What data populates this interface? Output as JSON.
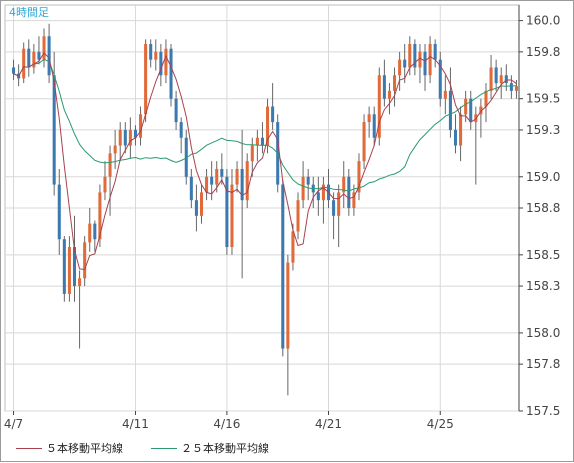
{
  "chart_data": {
    "type": "candlestick",
    "interval_label": "4時間足",
    "ylim": [
      157.5,
      160.1
    ],
    "y_ticks": [
      "160.0",
      "159.8",
      "159.5",
      "159.3",
      "159.0",
      "158.8",
      "158.5",
      "158.3",
      "158.0",
      "157.8",
      "157.5"
    ],
    "x_tick_labels": [
      "4/7",
      "4/11",
      "4/16",
      "4/21",
      "4/25"
    ],
    "x_tick_index": [
      0,
      24,
      42,
      62,
      84
    ],
    "n_bars": 100,
    "grid": true,
    "legend": [
      {
        "label": "５本移動平均線",
        "color": "#a8414e"
      },
      {
        "label": "２５本移動平均線",
        "color": "#2a9a6e"
      }
    ],
    "colors": {
      "bull": "#e06a3a",
      "bear": "#3b79b0",
      "wick": "#666666",
      "grid": "#d8d8d8",
      "axis": "#444444",
      "interval": "#2ea8d8"
    },
    "ohlc": [
      [
        159.7,
        159.75,
        159.62,
        159.66
      ],
      [
        159.66,
        159.72,
        159.58,
        159.63
      ],
      [
        159.63,
        159.86,
        159.6,
        159.82
      ],
      [
        159.82,
        159.88,
        159.64,
        159.7
      ],
      [
        159.7,
        159.85,
        159.66,
        159.8
      ],
      [
        159.8,
        159.9,
        159.72,
        159.75
      ],
      [
        159.75,
        159.95,
        159.7,
        159.9
      ],
      [
        159.9,
        159.98,
        159.6,
        159.65
      ],
      [
        159.65,
        159.8,
        158.88,
        158.95
      ],
      [
        158.95,
        159.05,
        158.5,
        158.6
      ],
      [
        158.6,
        158.62,
        158.2,
        158.25
      ],
      [
        158.25,
        158.62,
        158.2,
        158.55
      ],
      [
        158.55,
        158.75,
        158.2,
        158.3
      ],
      [
        158.3,
        158.4,
        157.9,
        158.35
      ],
      [
        158.35,
        158.62,
        158.3,
        158.58
      ],
      [
        158.58,
        158.8,
        158.52,
        158.7
      ],
      [
        158.7,
        158.72,
        158.52,
        158.6
      ],
      [
        158.6,
        158.95,
        158.55,
        158.9
      ],
      [
        158.9,
        159.1,
        158.85,
        159.0
      ],
      [
        159.0,
        159.2,
        158.75,
        159.15
      ],
      [
        159.15,
        159.3,
        159.05,
        159.2
      ],
      [
        159.2,
        159.35,
        159.1,
        159.3
      ],
      [
        159.3,
        159.35,
        159.15,
        159.2
      ],
      [
        159.2,
        159.38,
        159.12,
        159.3
      ],
      [
        159.3,
        159.33,
        159.2,
        159.25
      ],
      [
        159.25,
        159.45,
        159.2,
        159.4
      ],
      [
        159.4,
        159.88,
        159.35,
        159.85
      ],
      [
        159.85,
        159.88,
        159.7,
        159.75
      ],
      [
        159.75,
        159.88,
        159.68,
        159.8
      ],
      [
        159.8,
        159.85,
        159.58,
        159.65
      ],
      [
        159.65,
        159.88,
        159.6,
        159.82
      ],
      [
        159.82,
        159.85,
        159.45,
        159.5
      ],
      [
        159.5,
        159.55,
        159.3,
        159.35
      ],
      [
        159.35,
        159.38,
        159.15,
        159.25
      ],
      [
        159.25,
        159.3,
        158.95,
        159.0
      ],
      [
        159.0,
        159.05,
        158.8,
        158.85
      ],
      [
        158.85,
        158.95,
        158.65,
        158.75
      ],
      [
        158.75,
        158.95,
        158.7,
        158.9
      ],
      [
        158.9,
        159.05,
        158.85,
        159.0
      ],
      [
        159.0,
        159.1,
        158.85,
        158.95
      ],
      [
        158.95,
        159.1,
        158.9,
        159.05
      ],
      [
        159.05,
        159.15,
        158.95,
        159.0
      ],
      [
        159.0,
        159.05,
        158.5,
        158.55
      ],
      [
        158.55,
        159.05,
        158.5,
        158.95
      ],
      [
        158.95,
        159.1,
        158.9,
        159.05
      ],
      [
        159.05,
        159.3,
        158.35,
        158.85
      ],
      [
        158.85,
        159.15,
        158.8,
        159.1
      ],
      [
        159.1,
        159.25,
        159.0,
        159.2
      ],
      [
        159.2,
        159.3,
        159.1,
        159.25
      ],
      [
        159.25,
        159.35,
        159.15,
        159.2
      ],
      [
        159.2,
        159.5,
        159.15,
        159.45
      ],
      [
        159.45,
        159.6,
        159.3,
        159.35
      ],
      [
        159.35,
        159.4,
        158.9,
        158.95
      ],
      [
        158.95,
        158.98,
        157.85,
        157.9
      ],
      [
        157.9,
        158.5,
        157.6,
        158.45
      ],
      [
        158.45,
        158.7,
        158.4,
        158.65
      ],
      [
        158.65,
        158.9,
        158.6,
        158.85
      ],
      [
        158.85,
        159.1,
        158.8,
        159.0
      ],
      [
        159.0,
        159.05,
        158.85,
        158.95
      ],
      [
        158.95,
        159.0,
        158.8,
        158.9
      ],
      [
        158.9,
        159.0,
        158.75,
        158.85
      ],
      [
        158.85,
        159.0,
        158.7,
        158.95
      ],
      [
        158.95,
        159.05,
        158.8,
        158.85
      ],
      [
        158.85,
        158.9,
        158.6,
        158.75
      ],
      [
        158.75,
        158.95,
        158.55,
        158.9
      ],
      [
        158.9,
        159.1,
        158.8,
        159.0
      ],
      [
        159.0,
        159.05,
        158.75,
        158.8
      ],
      [
        158.8,
        158.95,
        158.75,
        158.9
      ],
      [
        158.9,
        159.15,
        158.85,
        159.1
      ],
      [
        159.1,
        159.4,
        159.05,
        159.35
      ],
      [
        159.35,
        159.45,
        159.25,
        159.4
      ],
      [
        159.4,
        159.45,
        159.2,
        159.25
      ],
      [
        159.25,
        159.7,
        159.2,
        159.65
      ],
      [
        159.65,
        159.75,
        159.45,
        159.5
      ],
      [
        159.5,
        159.6,
        159.4,
        159.55
      ],
      [
        159.55,
        159.7,
        159.45,
        159.65
      ],
      [
        159.65,
        159.8,
        159.55,
        159.75
      ],
      [
        159.75,
        159.85,
        159.6,
        159.7
      ],
      [
        159.7,
        159.9,
        159.65,
        159.85
      ],
      [
        159.85,
        159.88,
        159.65,
        159.7
      ],
      [
        159.7,
        159.85,
        159.6,
        159.8
      ],
      [
        159.8,
        159.85,
        159.55,
        159.65
      ],
      [
        159.65,
        159.9,
        159.6,
        159.85
      ],
      [
        159.85,
        159.88,
        159.7,
        159.75
      ],
      [
        159.75,
        159.8,
        159.45,
        159.5
      ],
      [
        159.5,
        159.65,
        159.4,
        159.55
      ],
      [
        159.55,
        159.7,
        159.25,
        159.3
      ],
      [
        159.3,
        159.4,
        159.15,
        159.2
      ],
      [
        159.2,
        159.45,
        159.1,
        159.4
      ],
      [
        159.4,
        159.55,
        159.35,
        159.5
      ],
      [
        159.5,
        159.55,
        159.3,
        159.35
      ],
      [
        159.35,
        159.45,
        158.95,
        159.4
      ],
      [
        159.4,
        159.5,
        159.25,
        159.45
      ],
      [
        159.45,
        159.6,
        159.35,
        159.55
      ],
      [
        159.55,
        159.78,
        159.5,
        159.7
      ],
      [
        159.7,
        159.75,
        159.55,
        159.6
      ],
      [
        159.6,
        159.7,
        159.5,
        159.65
      ],
      [
        159.65,
        159.72,
        159.55,
        159.6
      ],
      [
        159.6,
        159.65,
        159.5,
        159.55
      ],
      [
        159.55,
        159.62,
        159.5,
        159.58
      ]
    ]
  }
}
